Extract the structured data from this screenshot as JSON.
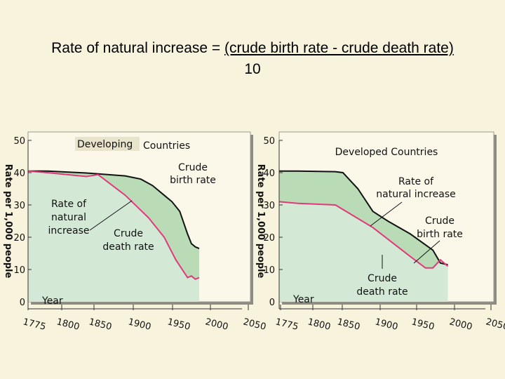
{
  "title": {
    "prefix": "Rate of natural increase = ",
    "formula": "(crude birth rate - crude death rate)",
    "denominator": "10"
  },
  "colors": {
    "background": "#f7f3dc",
    "natural_increase_fill": "#b9dcb6",
    "death_area_fill": "#d3e9d5",
    "birth_line": "#111111",
    "death_line": "#e03a7a"
  },
  "chart_data": [
    {
      "type": "area",
      "title": "Developing Countries",
      "title_parts": [
        "Developing",
        "Countries"
      ],
      "ylabel": "Rate per 1,000 people",
      "xlabel": "Year",
      "ylim": [
        0,
        50
      ],
      "xlim": [
        1775,
        2050
      ],
      "yticks": [
        "50",
        "40",
        "30",
        "20",
        "10",
        "0"
      ],
      "xticks": [
        "1775",
        "1800",
        "1850",
        "1900",
        "1950",
        "2000",
        "2050"
      ],
      "annotations": [
        {
          "key": "birth",
          "lines": [
            "Crude",
            "birth rate"
          ]
        },
        {
          "key": "increase",
          "lines": [
            "Rate of",
            "natural",
            "increase"
          ]
        },
        {
          "key": "death",
          "lines": [
            "Crude",
            "death rate"
          ]
        }
      ],
      "series": [
        {
          "key": "birth",
          "name": "Crude birth rate",
          "x": [
            1775,
            1800,
            1850,
            1900,
            1920,
            1935,
            1950,
            1960,
            1970,
            1980,
            1985,
            1990,
            1995
          ],
          "values": [
            40.5,
            40.5,
            39.9,
            39.0,
            38.0,
            36.0,
            33.0,
            31.0,
            28.0,
            21.0,
            18.0,
            17.0,
            16.5
          ]
        },
        {
          "key": "death",
          "name": "Crude death rate",
          "x": [
            1775,
            1800,
            1850,
            1865,
            1900,
            1930,
            1950,
            1965,
            1980,
            1985,
            1990,
            1995
          ],
          "values": [
            40.5,
            40.0,
            38.8,
            39.4,
            33.0,
            26.0,
            20.0,
            13.0,
            7.5,
            8.0,
            7.0,
            7.5
          ]
        }
      ]
    },
    {
      "type": "area",
      "title": "Developed Countries",
      "ylabel": "Rate per 1,000 people",
      "xlabel": "Year",
      "ylim": [
        0,
        50
      ],
      "xlim": [
        1775,
        2050
      ],
      "yticks": [
        "50",
        "40",
        "30",
        "20",
        "10",
        "0"
      ],
      "xticks": [
        "1775",
        "1800",
        "1850",
        "1900",
        "1950",
        "2000",
        "2050"
      ],
      "annotations": [
        {
          "key": "increase",
          "lines": [
            "Rate of",
            "natural increase"
          ]
        },
        {
          "key": "birth",
          "lines": [
            "Crude",
            "birth rate"
          ]
        },
        {
          "key": "death",
          "lines": [
            "Crude",
            "death rate"
          ]
        }
      ],
      "series": [
        {
          "key": "birth",
          "name": "Crude birth rate",
          "x": [
            1775,
            1800,
            1850,
            1860,
            1880,
            1900,
            1920,
            1950,
            1980,
            1990,
            2000
          ],
          "values": [
            40.5,
            40.5,
            40.3,
            40.0,
            35.0,
            28.0,
            25.0,
            21.0,
            16.0,
            12.0,
            11.5
          ]
        },
        {
          "key": "death",
          "name": "Crude death rate",
          "x": [
            1775,
            1800,
            1850,
            1900,
            1950,
            1970,
            1980,
            1990,
            2000
          ],
          "values": [
            31.0,
            30.5,
            30.0,
            23.0,
            14.0,
            10.5,
            10.5,
            13.0,
            11.0
          ]
        }
      ]
    }
  ]
}
